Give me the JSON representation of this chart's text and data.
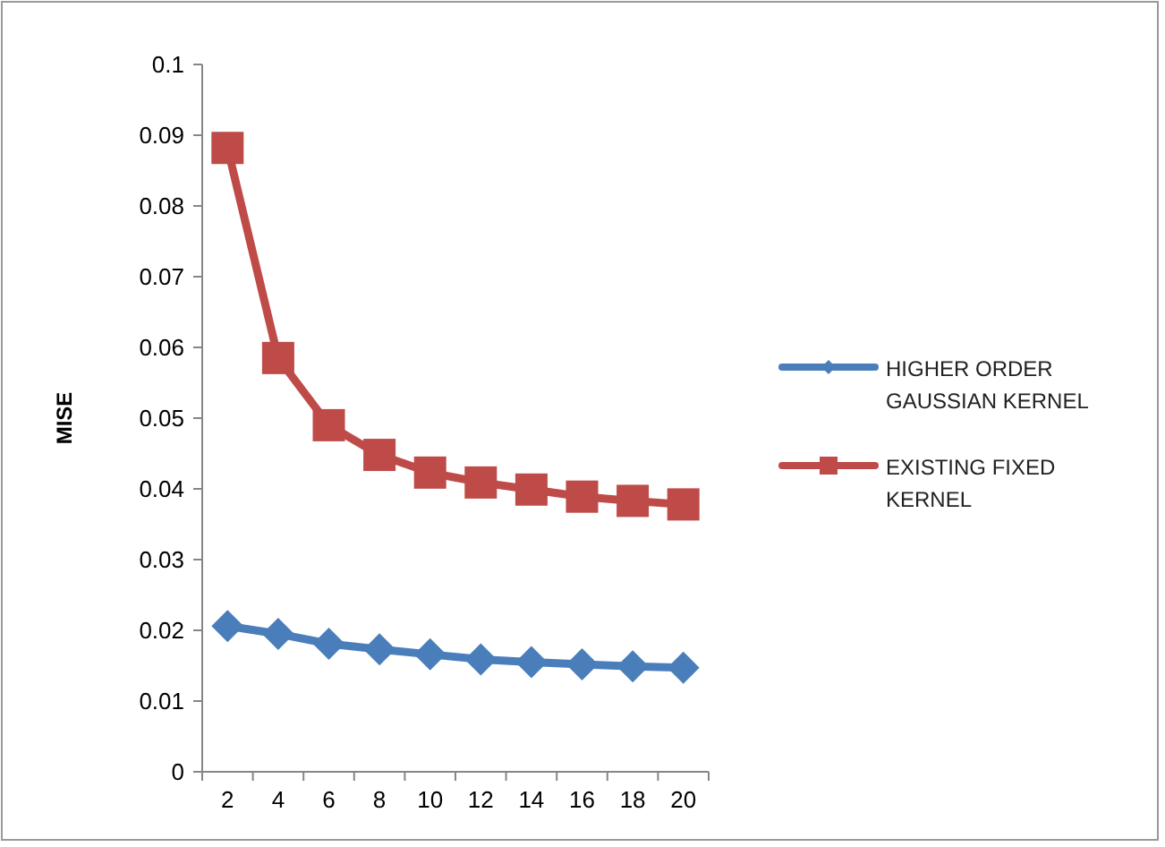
{
  "chart_data": {
    "type": "line",
    "ylabel": "MISE",
    "categories": [
      "2",
      "4",
      "6",
      "8",
      "10",
      "12",
      "14",
      "16",
      "18",
      "20"
    ],
    "series": [
      {
        "name": "HIGHER ORDER GAUSSIAN KERNEL",
        "color": "#4a7ebb",
        "marker": "diamond",
        "values": [
          0.0206,
          0.0195,
          0.0181,
          0.0173,
          0.0166,
          0.0159,
          0.0155,
          0.0152,
          0.0149,
          0.0147
        ]
      },
      {
        "name": "EXISTING FIXED KERNEL",
        "color": "#be4b48",
        "marker": "square",
        "values": [
          0.0882,
          0.0585,
          0.049,
          0.0448,
          0.0423,
          0.0409,
          0.0399,
          0.0389,
          0.0383,
          0.0378
        ]
      }
    ],
    "ylim": [
      0,
      0.1
    ],
    "yticks": [
      0,
      0.01,
      0.02,
      0.03,
      0.04,
      0.05,
      0.06,
      0.07,
      0.08,
      0.09,
      0.1
    ],
    "grid": false,
    "legend": "right",
    "line_style": "solid"
  }
}
